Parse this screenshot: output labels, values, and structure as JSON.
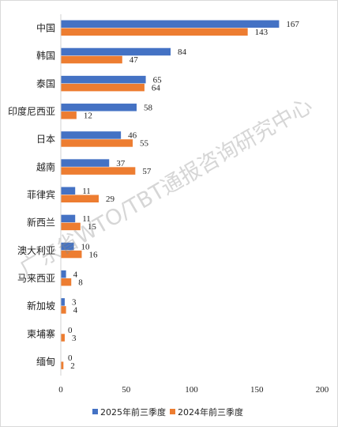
{
  "chart_data": {
    "type": "bar",
    "orientation": "horizontal",
    "categories": [
      "中国",
      "韩国",
      "泰国",
      "印度尼西亚",
      "日本",
      "越南",
      "菲律宾",
      "新西兰",
      "澳大利亚",
      "马来西亚",
      "新加坡",
      "柬埔寨",
      "缅甸"
    ],
    "series": [
      {
        "name": "2025年前三季度",
        "values": [
          167,
          84,
          65,
          58,
          46,
          37,
          11,
          11,
          10,
          4,
          3,
          0,
          0
        ],
        "color": "#4472c4"
      },
      {
        "name": "2024年前三季度",
        "values": [
          143,
          47,
          64,
          12,
          55,
          57,
          29,
          15,
          16,
          8,
          4,
          3,
          2
        ],
        "color": "#ed7d31"
      }
    ],
    "xlim": [
      0,
      200
    ],
    "x_ticks": [
      "0",
      "50",
      "100",
      "150",
      "200"
    ],
    "legend_position": "bottom",
    "grid": false,
    "data_labels": true,
    "watermark": "广东省WTO/TBT通报咨询研究中心"
  }
}
